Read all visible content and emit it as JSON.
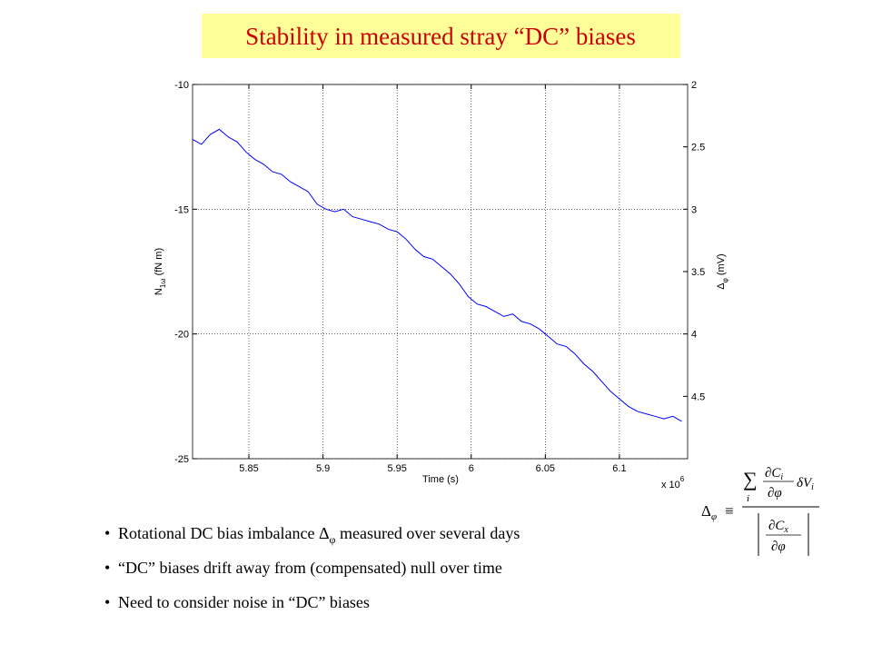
{
  "slide": {
    "title": "Stability in measured stray “DC” biases",
    "bullets": [
      {
        "marker": "•",
        "before": "Rotational DC bias imbalance Δ",
        "sub": "φ",
        "after": "  measured over several days"
      },
      {
        "marker": "•",
        "before": "“DC” biases drift away from (compensated) null over time"
      },
      {
        "marker": "•",
        "before": "Need to consider noise in “DC” biases"
      }
    ]
  },
  "equation": {
    "lhs": "Δ",
    "lhs_sub": "φ",
    "equiv": "≡",
    "sum": "∑",
    "sum_sub": "i",
    "num_top": "∂C",
    "num_top_sub": "i",
    "num_bottom": "∂φ",
    "dv": "δV",
    "dv_sub": "i",
    "den_top": "∂C",
    "den_top_sub": "x",
    "den_bottom": "∂φ"
  },
  "chart_data": {
    "type": "line",
    "x_label": "Time (s)",
    "x_multiplier": "x 10",
    "x_multiplier_exp": "6",
    "y_label": "N",
    "y_label_sub": "1ω",
    "y_label_unit": " (fN m)",
    "y2_label": "Δ",
    "y2_label_sub": "φ",
    "y2_label_unit": " (mV)",
    "xlim": [
      5.812,
      6.146
    ],
    "xticks": [
      5.85,
      5.9,
      5.95,
      6,
      6.05,
      6.1
    ],
    "ylim": [
      -25,
      -10
    ],
    "yticks": [
      -25,
      -20,
      -15,
      -10
    ],
    "y2lim": [
      2,
      5
    ],
    "y2ticks": [
      2,
      2.5,
      3,
      3.5,
      4,
      4.5
    ],
    "y2_inverted": true,
    "grid": true,
    "series": [
      {
        "color": "#0000ff",
        "x": [
          5.812,
          5.818,
          5.824,
          5.83,
          5.836,
          5.842,
          5.848,
          5.854,
          5.86,
          5.866,
          5.872,
          5.878,
          5.884,
          5.89,
          5.896,
          5.902,
          5.908,
          5.914,
          5.92,
          5.926,
          5.932,
          5.938,
          5.944,
          5.95,
          5.956,
          5.962,
          5.968,
          5.974,
          5.98,
          5.986,
          5.992,
          5.998,
          6.004,
          6.01,
          6.016,
          6.022,
          6.028,
          6.034,
          6.04,
          6.046,
          6.052,
          6.058,
          6.064,
          6.07,
          6.076,
          6.082,
          6.088,
          6.094,
          6.1,
          6.106,
          6.112,
          6.118,
          6.124,
          6.13,
          6.136,
          6.142
        ],
        "values": [
          -12.2,
          -12.4,
          -12.0,
          -11.8,
          -12.1,
          -12.3,
          -12.7,
          -13.0,
          -13.2,
          -13.5,
          -13.6,
          -13.9,
          -14.1,
          -14.3,
          -14.8,
          -15.0,
          -15.1,
          -15.0,
          -15.3,
          -15.4,
          -15.5,
          -15.6,
          -15.8,
          -15.9,
          -16.2,
          -16.6,
          -16.9,
          -17.0,
          -17.3,
          -17.6,
          -18.0,
          -18.5,
          -18.8,
          -18.9,
          -19.1,
          -19.3,
          -19.2,
          -19.5,
          -19.6,
          -19.8,
          -20.1,
          -20.4,
          -20.5,
          -20.8,
          -21.2,
          -21.5,
          -21.9,
          -22.3,
          -22.6,
          -22.9,
          -23.1,
          -23.2,
          -23.3,
          -23.4,
          -23.3,
          -23.5
        ]
      }
    ]
  }
}
